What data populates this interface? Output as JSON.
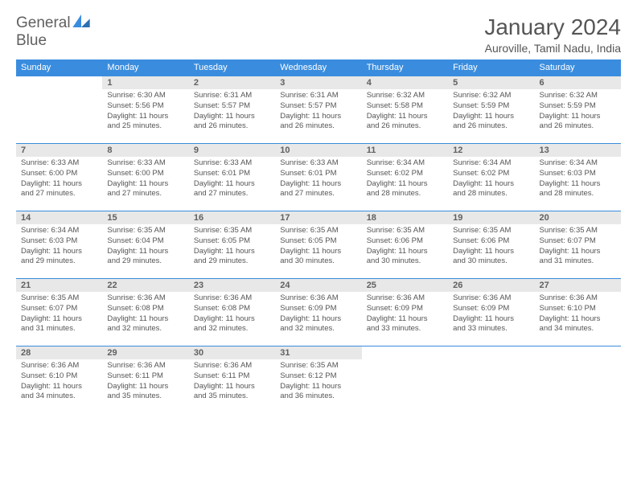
{
  "logo": {
    "text_a": "General",
    "text_b": "Blue",
    "mark_color": "#3a8dde"
  },
  "header": {
    "month": "January 2024",
    "location": "Auroville, Tamil Nadu, India"
  },
  "colors": {
    "header_bg": "#3a8dde",
    "header_text": "#ffffff",
    "daynum_bg": "#e8e8e8",
    "row_border": "#3a8dde",
    "body_text": "#555555"
  },
  "fonts": {
    "title_pt": 28,
    "location_pt": 14,
    "header_pt": 11,
    "daynum_pt": 11,
    "content_pt": 9.5
  },
  "columns": [
    "Sunday",
    "Monday",
    "Tuesday",
    "Wednesday",
    "Thursday",
    "Friday",
    "Saturday"
  ],
  "start_offset": 1,
  "days": [
    {
      "n": "1",
      "sunrise": "6:30 AM",
      "sunset": "5:56 PM",
      "dl_h": "11",
      "dl_m": "25"
    },
    {
      "n": "2",
      "sunrise": "6:31 AM",
      "sunset": "5:57 PM",
      "dl_h": "11",
      "dl_m": "26"
    },
    {
      "n": "3",
      "sunrise": "6:31 AM",
      "sunset": "5:57 PM",
      "dl_h": "11",
      "dl_m": "26"
    },
    {
      "n": "4",
      "sunrise": "6:32 AM",
      "sunset": "5:58 PM",
      "dl_h": "11",
      "dl_m": "26"
    },
    {
      "n": "5",
      "sunrise": "6:32 AM",
      "sunset": "5:59 PM",
      "dl_h": "11",
      "dl_m": "26"
    },
    {
      "n": "6",
      "sunrise": "6:32 AM",
      "sunset": "5:59 PM",
      "dl_h": "11",
      "dl_m": "26"
    },
    {
      "n": "7",
      "sunrise": "6:33 AM",
      "sunset": "6:00 PM",
      "dl_h": "11",
      "dl_m": "27"
    },
    {
      "n": "8",
      "sunrise": "6:33 AM",
      "sunset": "6:00 PM",
      "dl_h": "11",
      "dl_m": "27"
    },
    {
      "n": "9",
      "sunrise": "6:33 AM",
      "sunset": "6:01 PM",
      "dl_h": "11",
      "dl_m": "27"
    },
    {
      "n": "10",
      "sunrise": "6:33 AM",
      "sunset": "6:01 PM",
      "dl_h": "11",
      "dl_m": "27"
    },
    {
      "n": "11",
      "sunrise": "6:34 AM",
      "sunset": "6:02 PM",
      "dl_h": "11",
      "dl_m": "28"
    },
    {
      "n": "12",
      "sunrise": "6:34 AM",
      "sunset": "6:02 PM",
      "dl_h": "11",
      "dl_m": "28"
    },
    {
      "n": "13",
      "sunrise": "6:34 AM",
      "sunset": "6:03 PM",
      "dl_h": "11",
      "dl_m": "28"
    },
    {
      "n": "14",
      "sunrise": "6:34 AM",
      "sunset": "6:03 PM",
      "dl_h": "11",
      "dl_m": "29"
    },
    {
      "n": "15",
      "sunrise": "6:35 AM",
      "sunset": "6:04 PM",
      "dl_h": "11",
      "dl_m": "29"
    },
    {
      "n": "16",
      "sunrise": "6:35 AM",
      "sunset": "6:05 PM",
      "dl_h": "11",
      "dl_m": "29"
    },
    {
      "n": "17",
      "sunrise": "6:35 AM",
      "sunset": "6:05 PM",
      "dl_h": "11",
      "dl_m": "30"
    },
    {
      "n": "18",
      "sunrise": "6:35 AM",
      "sunset": "6:06 PM",
      "dl_h": "11",
      "dl_m": "30"
    },
    {
      "n": "19",
      "sunrise": "6:35 AM",
      "sunset": "6:06 PM",
      "dl_h": "11",
      "dl_m": "30"
    },
    {
      "n": "20",
      "sunrise": "6:35 AM",
      "sunset": "6:07 PM",
      "dl_h": "11",
      "dl_m": "31"
    },
    {
      "n": "21",
      "sunrise": "6:35 AM",
      "sunset": "6:07 PM",
      "dl_h": "11",
      "dl_m": "31"
    },
    {
      "n": "22",
      "sunrise": "6:36 AM",
      "sunset": "6:08 PM",
      "dl_h": "11",
      "dl_m": "32"
    },
    {
      "n": "23",
      "sunrise": "6:36 AM",
      "sunset": "6:08 PM",
      "dl_h": "11",
      "dl_m": "32"
    },
    {
      "n": "24",
      "sunrise": "6:36 AM",
      "sunset": "6:09 PM",
      "dl_h": "11",
      "dl_m": "32"
    },
    {
      "n": "25",
      "sunrise": "6:36 AM",
      "sunset": "6:09 PM",
      "dl_h": "11",
      "dl_m": "33"
    },
    {
      "n": "26",
      "sunrise": "6:36 AM",
      "sunset": "6:09 PM",
      "dl_h": "11",
      "dl_m": "33"
    },
    {
      "n": "27",
      "sunrise": "6:36 AM",
      "sunset": "6:10 PM",
      "dl_h": "11",
      "dl_m": "34"
    },
    {
      "n": "28",
      "sunrise": "6:36 AM",
      "sunset": "6:10 PM",
      "dl_h": "11",
      "dl_m": "34"
    },
    {
      "n": "29",
      "sunrise": "6:36 AM",
      "sunset": "6:11 PM",
      "dl_h": "11",
      "dl_m": "35"
    },
    {
      "n": "30",
      "sunrise": "6:36 AM",
      "sunset": "6:11 PM",
      "dl_h": "11",
      "dl_m": "35"
    },
    {
      "n": "31",
      "sunrise": "6:35 AM",
      "sunset": "6:12 PM",
      "dl_h": "11",
      "dl_m": "36"
    }
  ],
  "labels": {
    "sunrise": "Sunrise:",
    "sunset": "Sunset:",
    "daylight_a": "Daylight:",
    "hours": "hours",
    "and": "and",
    "minutes": "minutes."
  }
}
